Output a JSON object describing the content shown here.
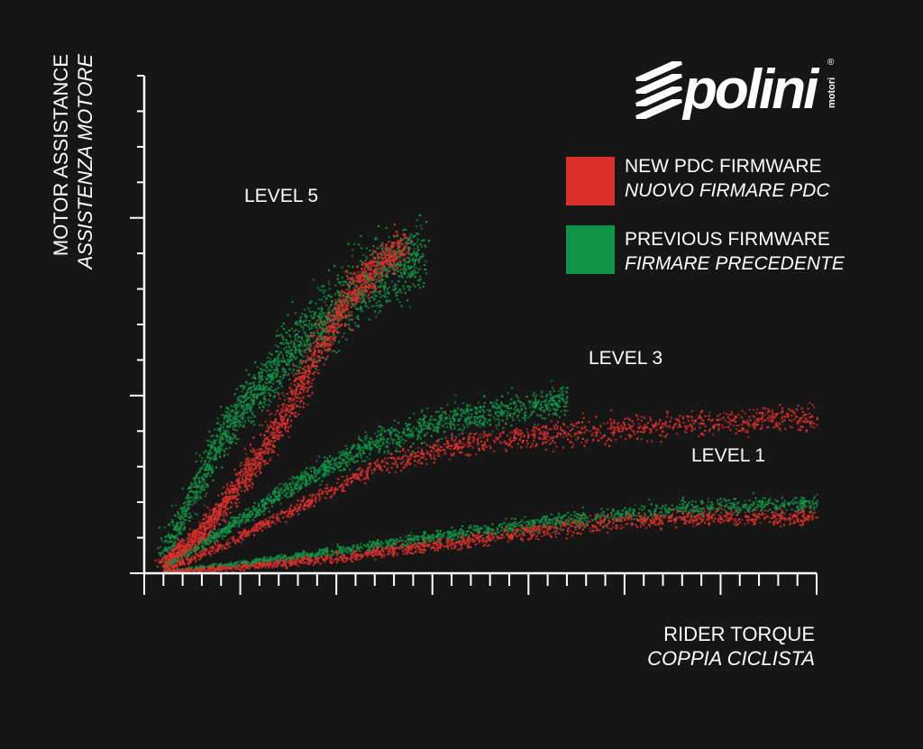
{
  "brand": {
    "logo_text": "polini",
    "logo_sub": "motori",
    "logo_mark": "®"
  },
  "legend": [
    {
      "label": "NEW PDC FIRMWARE",
      "label_it": "NUOVO FIRMARE PDC",
      "color": "#d9302c"
    },
    {
      "label": "PREVIOUS FIRMWARE",
      "label_it": "FIRMARE PRECEDENTE",
      "color": "#0f9447"
    }
  ],
  "chart_data": {
    "type": "scatter",
    "xlabel": "RIDER TORQUE",
    "xlabel_it": "COPPIA CICLISTA",
    "ylabel": "MOTOR ASSISTANCE",
    "ylabel_it": "ASSISTENZA MOTORE",
    "xlim": [
      0,
      35
    ],
    "ylim": [
      0,
      14
    ],
    "x_major_ticks": [
      0,
      5,
      10,
      15,
      20,
      25,
      30,
      35
    ],
    "y_major_ticks": [
      0,
      5,
      10
    ],
    "minor_ticks_per_major_x": 5,
    "minor_ticks_per_major_y": 5,
    "grid": false,
    "legend_position": "top-right",
    "annotations": [
      {
        "text": "LEVEL 5",
        "x": 5.2,
        "y": 10.5
      },
      {
        "text": "LEVEL 3",
        "x": 23.2,
        "y": 6
      },
      {
        "text": "LEVEL 1",
        "x": 28.5,
        "y": 3.3
      }
    ],
    "series": [
      {
        "name": "NEW PDC FIRMWARE",
        "color": "#d9302c",
        "curves": [
          {
            "level": "LEVEL 5",
            "x": [
              1,
              3,
              5,
              7,
              9,
              11,
              13.5
            ],
            "y": [
              0.3,
              1.2,
              2.6,
              4.2,
              6.3,
              8.1,
              9.3
            ]
          },
          {
            "level": "LEVEL 3",
            "x": [
              1,
              4,
              8,
              12,
              16,
              20,
              25,
              30,
              35
            ],
            "y": [
              0.1,
              0.8,
              1.9,
              3.0,
              3.6,
              3.9,
              4.1,
              4.3,
              4.4
            ]
          },
          {
            "level": "LEVEL 1",
            "x": [
              1,
              5,
              10,
              15,
              20,
              25,
              30,
              35
            ],
            "y": [
              0.05,
              0.2,
              0.45,
              0.8,
              1.2,
              1.5,
              1.6,
              1.6
            ]
          }
        ]
      },
      {
        "name": "PREVIOUS FIRMWARE",
        "color": "#0f9447",
        "curves": [
          {
            "level": "LEVEL 5",
            "x": [
              1,
              2.5,
              4,
              6,
              8,
              10,
              12,
              14.5
            ],
            "y": [
              0.6,
              2.2,
              3.9,
              5.3,
              6.5,
              7.5,
              8.4,
              9.0
            ]
          },
          {
            "level": "LEVEL 3",
            "x": [
              1,
              4,
              8,
              12,
              16,
              20,
              22
            ],
            "y": [
              0.2,
              1.2,
              2.6,
              3.7,
              4.4,
              4.7,
              4.9
            ]
          },
          {
            "level": "LEVEL 1",
            "x": [
              1,
              5,
              10,
              15,
              20,
              25,
              30,
              35
            ],
            "y": [
              0.05,
              0.3,
              0.65,
              1.05,
              1.4,
              1.7,
              1.9,
              2.0
            ]
          }
        ]
      }
    ]
  }
}
